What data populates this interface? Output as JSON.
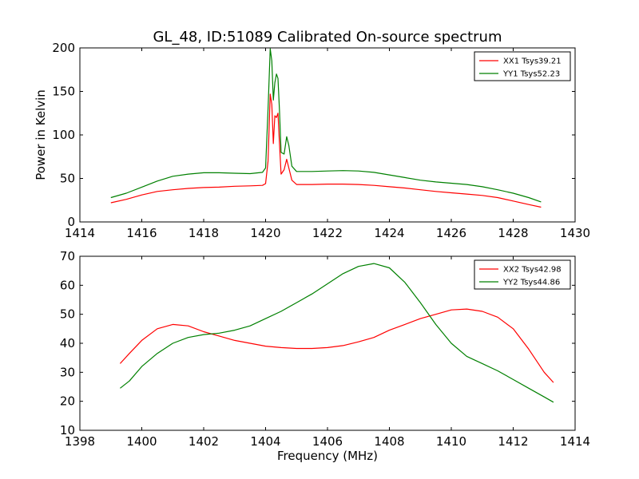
{
  "figure": {
    "title": "GL_48, ID:51089 Calibrated On-source spectrum"
  },
  "chart_data": [
    {
      "type": "line",
      "xlabel": "",
      "ylabel": "Power in Kelvin",
      "xlim": [
        1414,
        1430
      ],
      "ylim": [
        0,
        200
      ],
      "xticks": [
        1414,
        1416,
        1418,
        1420,
        1422,
        1424,
        1426,
        1428,
        1430
      ],
      "yticks": [
        0,
        50,
        100,
        150,
        200
      ],
      "legend_position": "top-right",
      "series": [
        {
          "name": "XX1 Tsys39.21",
          "color": "#ff0000",
          "points": [
            [
              1415.0,
              22
            ],
            [
              1415.5,
              26
            ],
            [
              1416.0,
              31
            ],
            [
              1416.5,
              35
            ],
            [
              1417.0,
              37
            ],
            [
              1417.5,
              38.5
            ],
            [
              1418.0,
              39.5
            ],
            [
              1418.5,
              40
            ],
            [
              1419.0,
              41
            ],
            [
              1419.5,
              41.5
            ],
            [
              1419.9,
              42
            ],
            [
              1420.0,
              44
            ],
            [
              1420.08,
              70
            ],
            [
              1420.15,
              147
            ],
            [
              1420.2,
              135
            ],
            [
              1420.25,
              90
            ],
            [
              1420.3,
              122
            ],
            [
              1420.35,
              120
            ],
            [
              1420.4,
              125
            ],
            [
              1420.45,
              90
            ],
            [
              1420.5,
              55
            ],
            [
              1420.6,
              60
            ],
            [
              1420.68,
              72
            ],
            [
              1420.75,
              62
            ],
            [
              1420.85,
              48
            ],
            [
              1421.0,
              43
            ],
            [
              1421.5,
              43
            ],
            [
              1422.0,
              43.5
            ],
            [
              1422.5,
              43.5
            ],
            [
              1423.0,
              43
            ],
            [
              1423.5,
              42
            ],
            [
              1424.0,
              40.5
            ],
            [
              1424.5,
              39
            ],
            [
              1425.0,
              37
            ],
            [
              1425.5,
              35
            ],
            [
              1426.0,
              33.5
            ],
            [
              1426.5,
              32
            ],
            [
              1427.0,
              30.5
            ],
            [
              1427.5,
              28
            ],
            [
              1428.0,
              24
            ],
            [
              1428.5,
              20
            ],
            [
              1428.9,
              17
            ]
          ]
        },
        {
          "name": "YY1 Tsys52.23",
          "color": "#008000",
          "points": [
            [
              1415.0,
              28
            ],
            [
              1415.5,
              33
            ],
            [
              1416.0,
              40
            ],
            [
              1416.5,
              47
            ],
            [
              1417.0,
              52.5
            ],
            [
              1417.5,
              55
            ],
            [
              1418.0,
              56.5
            ],
            [
              1418.5,
              56.5
            ],
            [
              1419.0,
              56
            ],
            [
              1419.5,
              55.5
            ],
            [
              1419.9,
              57
            ],
            [
              1420.0,
              62
            ],
            [
              1420.08,
              130
            ],
            [
              1420.15,
              199
            ],
            [
              1420.2,
              185
            ],
            [
              1420.25,
              140
            ],
            [
              1420.3,
              160
            ],
            [
              1420.35,
              170
            ],
            [
              1420.4,
              165
            ],
            [
              1420.45,
              128
            ],
            [
              1420.5,
              80
            ],
            [
              1420.6,
              78
            ],
            [
              1420.68,
              98
            ],
            [
              1420.75,
              88
            ],
            [
              1420.85,
              64
            ],
            [
              1421.0,
              58
            ],
            [
              1421.5,
              58
            ],
            [
              1422.0,
              58.5
            ],
            [
              1422.5,
              59
            ],
            [
              1423.0,
              58.5
            ],
            [
              1423.5,
              57
            ],
            [
              1424.0,
              54
            ],
            [
              1424.5,
              51
            ],
            [
              1425.0,
              48
            ],
            [
              1425.5,
              46
            ],
            [
              1426.0,
              44.5
            ],
            [
              1426.5,
              43
            ],
            [
              1427.0,
              40.5
            ],
            [
              1427.5,
              37
            ],
            [
              1428.0,
              33
            ],
            [
              1428.5,
              28
            ],
            [
              1428.9,
              23
            ]
          ]
        }
      ]
    },
    {
      "type": "line",
      "xlabel": "Frequency (MHz)",
      "ylabel": "",
      "xlim": [
        1398,
        1414
      ],
      "ylim": [
        10,
        70
      ],
      "xticks": [
        1398,
        1400,
        1402,
        1404,
        1406,
        1408,
        1410,
        1412,
        1414
      ],
      "yticks": [
        10,
        20,
        30,
        40,
        50,
        60,
        70
      ],
      "legend_position": "top-right",
      "series": [
        {
          "name": "XX2 Tsys42.98",
          "color": "#ff0000",
          "points": [
            [
              1399.3,
              33
            ],
            [
              1399.6,
              36.5
            ],
            [
              1400.0,
              41
            ],
            [
              1400.5,
              45
            ],
            [
              1401.0,
              46.5
            ],
            [
              1401.5,
              46
            ],
            [
              1402.0,
              44
            ],
            [
              1402.5,
              42.5
            ],
            [
              1403.0,
              41
            ],
            [
              1403.5,
              40
            ],
            [
              1404.0,
              39
            ],
            [
              1404.5,
              38.5
            ],
            [
              1405.0,
              38.2
            ],
            [
              1405.5,
              38.2
            ],
            [
              1406.0,
              38.5
            ],
            [
              1406.5,
              39.2
            ],
            [
              1407.0,
              40.5
            ],
            [
              1407.5,
              42
            ],
            [
              1408.0,
              44.5
            ],
            [
              1408.5,
              46.5
            ],
            [
              1409.0,
              48.5
            ],
            [
              1409.5,
              50
            ],
            [
              1410.0,
              51.5
            ],
            [
              1410.5,
              51.8
            ],
            [
              1411.0,
              51
            ],
            [
              1411.5,
              49
            ],
            [
              1412.0,
              45
            ],
            [
              1412.5,
              38
            ],
            [
              1413.0,
              30
            ],
            [
              1413.3,
              26.5
            ]
          ]
        },
        {
          "name": "YY2 Tsys44.86",
          "color": "#008000",
          "points": [
            [
              1399.3,
              24.5
            ],
            [
              1399.6,
              27
            ],
            [
              1400.0,
              32
            ],
            [
              1400.5,
              36.5
            ],
            [
              1401.0,
              40
            ],
            [
              1401.5,
              42
            ],
            [
              1402.0,
              43
            ],
            [
              1402.5,
              43.5
            ],
            [
              1403.0,
              44.5
            ],
            [
              1403.5,
              46
            ],
            [
              1404.0,
              48.5
            ],
            [
              1404.5,
              51
            ],
            [
              1405.0,
              54
            ],
            [
              1405.5,
              57
            ],
            [
              1406.0,
              60.5
            ],
            [
              1406.5,
              64
            ],
            [
              1407.0,
              66.5
            ],
            [
              1407.5,
              67.5
            ],
            [
              1408.0,
              66
            ],
            [
              1408.5,
              61
            ],
            [
              1409.0,
              54
            ],
            [
              1409.5,
              46.5
            ],
            [
              1410.0,
              40
            ],
            [
              1410.5,
              35.5
            ],
            [
              1411.0,
              33
            ],
            [
              1411.5,
              30.5
            ],
            [
              1412.0,
              27.5
            ],
            [
              1412.5,
              24.5
            ],
            [
              1413.0,
              21.5
            ],
            [
              1413.3,
              19.7
            ]
          ]
        }
      ]
    }
  ]
}
